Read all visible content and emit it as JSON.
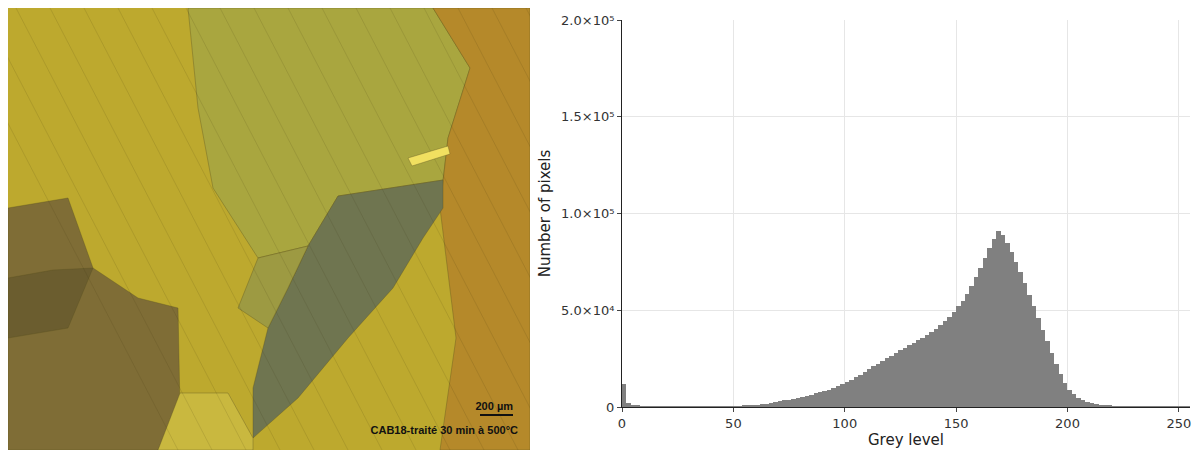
{
  "image": {
    "scale_bar_label": "200 µm",
    "caption": "CAB18-traité 30 min à 500°C"
  },
  "chart_data": {
    "type": "histogram",
    "x_label": "Grey level",
    "y_label": "Number of pixels",
    "color": "#808080",
    "bins": [
      0,
      2,
      4,
      6,
      8,
      10,
      12,
      14,
      16,
      18,
      20,
      22,
      24,
      26,
      28,
      30,
      32,
      34,
      36,
      38,
      40,
      42,
      44,
      46,
      48,
      50,
      52,
      54,
      56,
      58,
      60,
      62,
      64,
      66,
      68,
      70,
      72,
      74,
      76,
      78,
      80,
      82,
      84,
      86,
      88,
      90,
      92,
      94,
      96,
      98,
      100,
      102,
      104,
      106,
      108,
      110,
      112,
      114,
      116,
      118,
      120,
      122,
      124,
      126,
      128,
      130,
      132,
      134,
      136,
      138,
      140,
      142,
      144,
      146,
      148,
      150,
      152,
      154,
      156,
      158,
      160,
      162,
      164,
      166,
      168,
      170,
      172,
      174,
      176,
      178,
      180,
      182,
      184,
      186,
      188,
      190,
      192,
      194,
      196,
      198,
      200,
      202,
      204,
      206,
      208,
      210,
      212,
      214,
      216,
      218,
      220,
      222,
      224,
      226,
      228,
      230,
      232,
      234,
      236,
      238,
      240,
      242,
      244,
      246,
      248,
      250,
      252,
      254,
      256
    ],
    "values": [
      12000,
      2000,
      1000,
      800,
      700,
      600,
      600,
      600,
      600,
      600,
      600,
      600,
      600,
      600,
      600,
      500,
      500,
      500,
      500,
      500,
      500,
      500,
      500,
      500,
      500,
      600,
      700,
      800,
      900,
      1000,
      1200,
      1500,
      1800,
      2200,
      2600,
      3000,
      3400,
      3800,
      4200,
      4700,
      5200,
      5800,
      6400,
      7000,
      7600,
      8300,
      9000,
      9800,
      10700,
      11700,
      12800,
      14000,
      15300,
      16600,
      18000,
      19500,
      21000,
      22400,
      23800,
      25200,
      26600,
      28000,
      29300,
      30600,
      31900,
      33200,
      34500,
      35800,
      37200,
      38700,
      40300,
      42200,
      44300,
      46600,
      49200,
      52000,
      55000,
      58500,
      62500,
      67000,
      72000,
      77000,
      82000,
      87000,
      91000,
      89000,
      85000,
      80000,
      75000,
      70000,
      64000,
      58000,
      52000,
      46000,
      40000,
      34000,
      28000,
      22000,
      17000,
      12500,
      9000,
      6500,
      4700,
      3400,
      2500,
      1900,
      1500,
      1200,
      1000,
      850,
      750,
      650,
      600,
      550,
      500,
      450,
      400,
      400,
      400,
      400,
      400,
      400,
      400,
      400,
      400,
      400,
      400,
      300
    ],
    "xlim": [
      0,
      255
    ],
    "xticks": [
      0,
      50,
      100,
      150,
      200,
      250
    ],
    "ylim": [
      0,
      200000
    ],
    "yticks": [
      0,
      {
        "value": 50000,
        "label": "5.0×10⁴"
      },
      {
        "value": 100000,
        "label": "1.0×10⁵"
      },
      {
        "value": 150000,
        "label": "1.5×10⁵"
      },
      {
        "value": 200000,
        "label": "2.0×10⁵"
      }
    ],
    "grid": true
  }
}
